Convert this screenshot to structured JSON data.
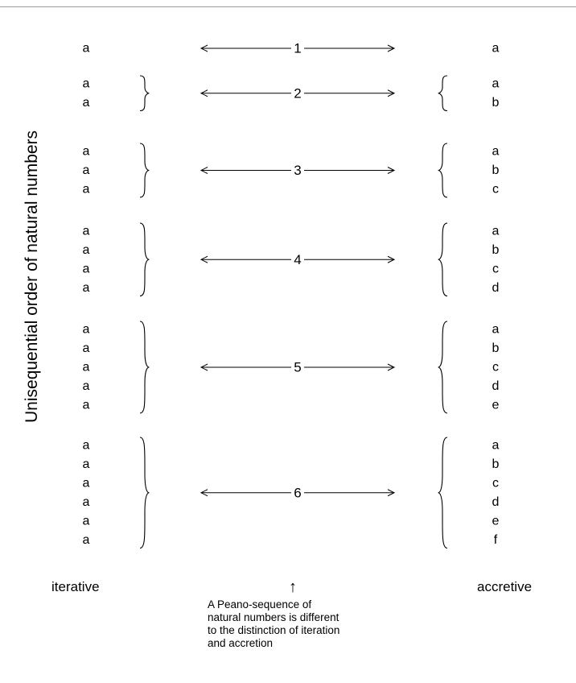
{
  "axis_label": "Unisequential order of natural numbers",
  "left_label": "iterative",
  "right_label": "accretive",
  "up_arrow": "↑",
  "caption": "A Peano-sequence of natural  numbers is different to the distinction of iteration and accretion",
  "rows": [
    {
      "number": "1",
      "iterative": [
        "a"
      ],
      "accretive": [
        "a"
      ]
    },
    {
      "number": "2",
      "iterative": [
        "a",
        "a"
      ],
      "accretive": [
        "a",
        "b"
      ]
    },
    {
      "number": "3",
      "iterative": [
        "a",
        "a",
        "a"
      ],
      "accretive": [
        "a",
        "b",
        "c"
      ]
    },
    {
      "number": "4",
      "iterative": [
        "a",
        "a",
        "a",
        "a"
      ],
      "accretive": [
        "a",
        "b",
        "c",
        "d"
      ]
    },
    {
      "number": "5",
      "iterative": [
        "a",
        "a",
        "a",
        "a",
        "a"
      ],
      "accretive": [
        "a",
        "b",
        "c",
        "d",
        "e"
      ]
    },
    {
      "number": "6",
      "iterative": [
        "a",
        "a",
        "a",
        "a",
        "a",
        "a"
      ],
      "accretive": [
        "a",
        "b",
        "c",
        "d",
        "e",
        "f"
      ]
    }
  ]
}
